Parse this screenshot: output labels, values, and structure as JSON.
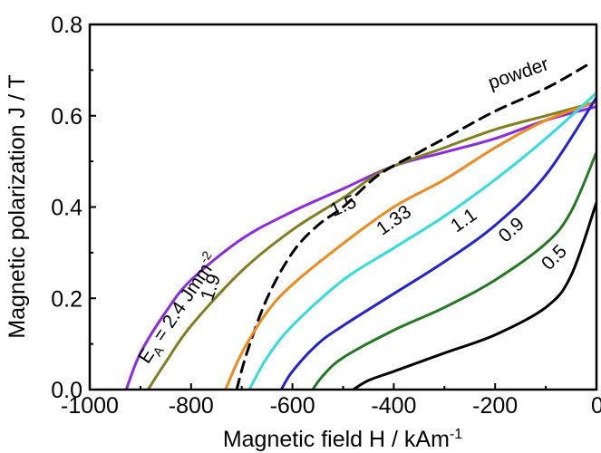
{
  "chart_data": {
    "type": "line",
    "title": "",
    "xlabel": "Magnetic field H / kAm",
    "xlabel_sup": "-1",
    "ylabel": "Magnetic polarization J / T",
    "xlim": [
      -1000,
      0
    ],
    "ylim": [
      0,
      0.8
    ],
    "x_ticks": [
      -1000,
      -800,
      -600,
      -400,
      -200,
      0
    ],
    "x_tick_labels": [
      "-1000",
      "-800",
      "-600",
      "-400",
      "-200",
      "0"
    ],
    "y_ticks": [
      0.0,
      0.2,
      0.4,
      0.6,
      0.8
    ],
    "y_tick_labels": [
      "0.0",
      "0.2",
      "0.4",
      "0.6",
      "0.8"
    ],
    "grid": false,
    "legend": "none",
    "series": [
      {
        "name": "E_A = 2.4 Jmm-2",
        "color": "#8b2be2",
        "dashed": false,
        "x": [
          -928,
          -900,
          -850,
          -800,
          -700,
          -600,
          -500,
          -400,
          -300,
          -200,
          -100,
          0
        ],
        "y": [
          0,
          0.08,
          0.17,
          0.24,
          0.33,
          0.39,
          0.44,
          0.49,
          0.52,
          0.55,
          0.59,
          0.62
        ]
      },
      {
        "name": "1.9",
        "color": "#808020",
        "dashed": false,
        "x": [
          -885,
          -850,
          -800,
          -700,
          -600,
          -500,
          -420,
          -300,
          -200,
          -100,
          0
        ],
        "y": [
          0,
          0.06,
          0.14,
          0.26,
          0.35,
          0.42,
          0.48,
          0.53,
          0.57,
          0.6,
          0.63
        ]
      },
      {
        "name": "powder",
        "color": "#000000",
        "dashed": true,
        "x": [
          -710,
          -690,
          -650,
          -600,
          -550,
          -500,
          -430,
          -350,
          -300,
          -200,
          -100,
          -20
        ],
        "y": [
          0,
          0.08,
          0.2,
          0.3,
          0.36,
          0.4,
          0.47,
          0.52,
          0.55,
          0.61,
          0.66,
          0.71
        ]
      },
      {
        "name": "1.5",
        "color": "#f08a1c",
        "dashed": false,
        "x": [
          -732,
          -700,
          -650,
          -600,
          -500,
          -400,
          -300,
          -200,
          -100,
          0
        ],
        "y": [
          0,
          0.08,
          0.17,
          0.23,
          0.32,
          0.4,
          0.46,
          0.53,
          0.59,
          0.63
        ]
      },
      {
        "name": "1.33",
        "color": "#33dddd",
        "dashed": false,
        "x": [
          -685,
          -650,
          -600,
          -500,
          -400,
          -300,
          -200,
          -100,
          0
        ],
        "y": [
          0,
          0.07,
          0.14,
          0.24,
          0.31,
          0.38,
          0.46,
          0.55,
          0.65
        ]
      },
      {
        "name": "1.1",
        "color": "#2323d0",
        "dashed": false,
        "x": [
          -622,
          -600,
          -550,
          -500,
          -400,
          -300,
          -200,
          -100,
          0
        ],
        "y": [
          0,
          0.04,
          0.1,
          0.14,
          0.21,
          0.28,
          0.36,
          0.47,
          0.64
        ]
      },
      {
        "name": "0.9",
        "color": "#237a23",
        "dashed": false,
        "x": [
          -560,
          -540,
          -500,
          -400,
          -300,
          -200,
          -100,
          -50,
          0
        ],
        "y": [
          0,
          0.03,
          0.07,
          0.13,
          0.18,
          0.24,
          0.32,
          0.39,
          0.52
        ]
      },
      {
        "name": "0.5",
        "color": "#000000",
        "dashed": false,
        "x": [
          -480,
          -450,
          -400,
          -300,
          -200,
          -100,
          -50,
          0
        ],
        "y": [
          0,
          0.02,
          0.04,
          0.08,
          0.12,
          0.18,
          0.25,
          0.41
        ]
      }
    ],
    "annotations": [
      {
        "text_main": "E",
        "text_sub": "A",
        "text_rest": " = 2.4 Jmm",
        "text_sup": "-2",
        "x": -815,
        "y": 0.17,
        "angle": -56,
        "series": "E_A = 2.4 Jmm-2"
      },
      {
        "text": "1.9",
        "x": -750,
        "y": 0.22,
        "angle": -72,
        "series": "1.9"
      },
      {
        "text": "1.5",
        "x": -495,
        "y": 0.39,
        "angle": -24,
        "series": "1.5"
      },
      {
        "text": "1.33",
        "x": -393,
        "y": 0.36,
        "angle": -35,
        "series": "1.33"
      },
      {
        "text": "1.1",
        "x": -255,
        "y": 0.36,
        "angle": -35,
        "series": "1.1"
      },
      {
        "text": "0.9",
        "x": -160,
        "y": 0.34,
        "angle": -42,
        "series": "0.9"
      },
      {
        "text": "0.5",
        "x": -75,
        "y": 0.28,
        "angle": -45,
        "series": "0.5"
      },
      {
        "text": "powder",
        "x": -150,
        "y": 0.68,
        "angle": -19,
        "series": "powder"
      }
    ]
  }
}
